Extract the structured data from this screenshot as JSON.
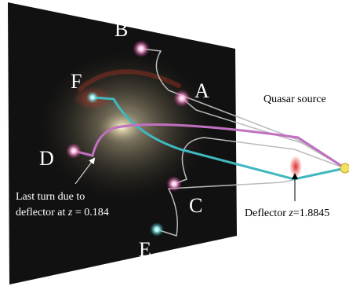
{
  "images": {
    "A": "A",
    "B": "B",
    "C": "C",
    "D": "D",
    "E": "E",
    "F": "F"
  },
  "source_label": "Quasar source",
  "deflector_label": [
    "Deflector ",
    "z",
    "=1.8845"
  ],
  "last_turn_label": {
    "line1": "Last turn due to",
    "line2": [
      "deflector at ",
      "z",
      " = 0.184"
    ]
  }
}
